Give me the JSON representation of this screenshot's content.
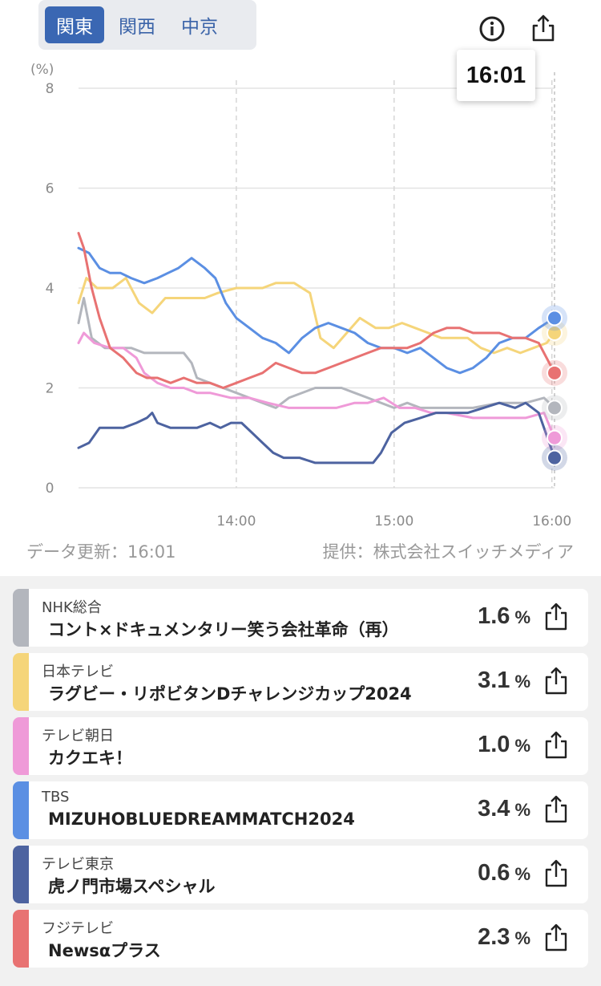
{
  "region_tabs": [
    {
      "label": "関東",
      "active": true
    },
    {
      "label": "関西",
      "active": false
    },
    {
      "label": "中京",
      "active": false
    }
  ],
  "icons": {
    "info": "info-icon",
    "share": "share-icon"
  },
  "tooltip": {
    "time": "16:01"
  },
  "footer": {
    "updated": "データ更新：16:01",
    "provider": "提供：株式会社スイッチメディア"
  },
  "chart_data": {
    "type": "line",
    "ylabel": "(%)",
    "ylim": [
      0,
      8
    ],
    "y_ticks": [
      "0",
      "2",
      "4",
      "6",
      "8"
    ],
    "x_range_minutes": [
      780,
      961
    ],
    "x_ticks": [
      {
        "label": "14:00",
        "minute": 840
      },
      {
        "label": "15:00",
        "minute": 900
      },
      {
        "label": "16:00",
        "minute": 960
      }
    ],
    "cursor_minute": 961,
    "series": [
      {
        "name": "NHK総合",
        "color": "#b3b6bd",
        "points": [
          [
            780,
            3.3
          ],
          [
            782,
            3.8
          ],
          [
            785,
            3.0
          ],
          [
            790,
            2.8
          ],
          [
            795,
            2.8
          ],
          [
            800,
            2.8
          ],
          [
            805,
            2.7
          ],
          [
            810,
            2.7
          ],
          [
            815,
            2.7
          ],
          [
            820,
            2.7
          ],
          [
            823,
            2.5
          ],
          [
            825,
            2.2
          ],
          [
            830,
            2.1
          ],
          [
            840,
            1.9
          ],
          [
            850,
            1.7
          ],
          [
            855,
            1.6
          ],
          [
            860,
            1.8
          ],
          [
            870,
            2.0
          ],
          [
            880,
            2.0
          ],
          [
            885,
            1.9
          ],
          [
            890,
            1.8
          ],
          [
            900,
            1.6
          ],
          [
            905,
            1.7
          ],
          [
            910,
            1.6
          ],
          [
            920,
            1.6
          ],
          [
            930,
            1.6
          ],
          [
            940,
            1.7
          ],
          [
            950,
            1.7
          ],
          [
            957,
            1.8
          ],
          [
            961,
            1.6
          ]
        ]
      },
      {
        "name": "日本テレビ",
        "color": "#f5d57a",
        "points": [
          [
            780,
            3.7
          ],
          [
            783,
            4.2
          ],
          [
            787,
            4.0
          ],
          [
            793,
            4.0
          ],
          [
            798,
            4.2
          ],
          [
            803,
            3.7
          ],
          [
            808,
            3.5
          ],
          [
            813,
            3.8
          ],
          [
            818,
            3.8
          ],
          [
            823,
            3.8
          ],
          [
            828,
            3.8
          ],
          [
            833,
            3.9
          ],
          [
            840,
            4.0
          ],
          [
            850,
            4.0
          ],
          [
            855,
            4.1
          ],
          [
            862,
            4.1
          ],
          [
            868,
            3.9
          ],
          [
            872,
            3.0
          ],
          [
            877,
            2.8
          ],
          [
            882,
            3.1
          ],
          [
            887,
            3.4
          ],
          [
            893,
            3.2
          ],
          [
            898,
            3.2
          ],
          [
            903,
            3.3
          ],
          [
            908,
            3.2
          ],
          [
            913,
            3.1
          ],
          [
            918,
            3.0
          ],
          [
            923,
            3.0
          ],
          [
            928,
            3.0
          ],
          [
            933,
            2.8
          ],
          [
            938,
            2.7
          ],
          [
            943,
            2.8
          ],
          [
            948,
            2.7
          ],
          [
            953,
            2.8
          ],
          [
            958,
            2.9
          ],
          [
            961,
            3.1
          ]
        ]
      },
      {
        "name": "テレビ朝日",
        "color": "#ef9ad8",
        "points": [
          [
            780,
            2.9
          ],
          [
            782,
            3.1
          ],
          [
            786,
            2.9
          ],
          [
            792,
            2.8
          ],
          [
            797,
            2.8
          ],
          [
            802,
            2.6
          ],
          [
            805,
            2.3
          ],
          [
            810,
            2.1
          ],
          [
            815,
            2.0
          ],
          [
            820,
            2.0
          ],
          [
            825,
            1.9
          ],
          [
            830,
            1.9
          ],
          [
            838,
            1.8
          ],
          [
            845,
            1.8
          ],
          [
            852,
            1.7
          ],
          [
            860,
            1.6
          ],
          [
            870,
            1.6
          ],
          [
            878,
            1.6
          ],
          [
            885,
            1.7
          ],
          [
            890,
            1.7
          ],
          [
            896,
            1.8
          ],
          [
            902,
            1.6
          ],
          [
            908,
            1.6
          ],
          [
            914,
            1.5
          ],
          [
            920,
            1.5
          ],
          [
            930,
            1.4
          ],
          [
            940,
            1.4
          ],
          [
            950,
            1.4
          ],
          [
            957,
            1.5
          ],
          [
            961,
            1.0
          ]
        ]
      },
      {
        "name": "TBS",
        "color": "#5b8fe3",
        "points": [
          [
            780,
            4.8
          ],
          [
            784,
            4.7
          ],
          [
            788,
            4.4
          ],
          [
            792,
            4.3
          ],
          [
            796,
            4.3
          ],
          [
            800,
            4.2
          ],
          [
            805,
            4.1
          ],
          [
            810,
            4.2
          ],
          [
            814,
            4.3
          ],
          [
            818,
            4.4
          ],
          [
            823,
            4.6
          ],
          [
            828,
            4.4
          ],
          [
            832,
            4.2
          ],
          [
            836,
            3.7
          ],
          [
            840,
            3.4
          ],
          [
            845,
            3.2
          ],
          [
            850,
            3.0
          ],
          [
            855,
            2.9
          ],
          [
            860,
            2.7
          ],
          [
            865,
            3.0
          ],
          [
            870,
            3.2
          ],
          [
            875,
            3.3
          ],
          [
            880,
            3.2
          ],
          [
            885,
            3.1
          ],
          [
            890,
            2.9
          ],
          [
            895,
            2.8
          ],
          [
            900,
            2.8
          ],
          [
            905,
            2.7
          ],
          [
            910,
            2.8
          ],
          [
            915,
            2.6
          ],
          [
            920,
            2.4
          ],
          [
            925,
            2.3
          ],
          [
            930,
            2.4
          ],
          [
            935,
            2.6
          ],
          [
            940,
            2.9
          ],
          [
            945,
            3.0
          ],
          [
            950,
            3.0
          ],
          [
            955,
            3.2
          ],
          [
            961,
            3.4
          ]
        ]
      },
      {
        "name": "テレビ東京",
        "color": "#4d63a0",
        "points": [
          [
            780,
            0.8
          ],
          [
            784,
            0.9
          ],
          [
            788,
            1.2
          ],
          [
            792,
            1.2
          ],
          [
            797,
            1.2
          ],
          [
            802,
            1.3
          ],
          [
            806,
            1.4
          ],
          [
            808,
            1.5
          ],
          [
            810,
            1.3
          ],
          [
            815,
            1.2
          ],
          [
            820,
            1.2
          ],
          [
            825,
            1.2
          ],
          [
            830,
            1.3
          ],
          [
            834,
            1.2
          ],
          [
            838,
            1.3
          ],
          [
            842,
            1.3
          ],
          [
            846,
            1.1
          ],
          [
            850,
            0.9
          ],
          [
            854,
            0.7
          ],
          [
            858,
            0.6
          ],
          [
            864,
            0.6
          ],
          [
            870,
            0.5
          ],
          [
            876,
            0.5
          ],
          [
            882,
            0.5
          ],
          [
            888,
            0.5
          ],
          [
            892,
            0.5
          ],
          [
            895,
            0.7
          ],
          [
            899,
            1.1
          ],
          [
            904,
            1.3
          ],
          [
            910,
            1.4
          ],
          [
            916,
            1.5
          ],
          [
            922,
            1.5
          ],
          [
            928,
            1.5
          ],
          [
            934,
            1.6
          ],
          [
            940,
            1.7
          ],
          [
            946,
            1.6
          ],
          [
            950,
            1.7
          ],
          [
            955,
            1.5
          ],
          [
            961,
            0.6
          ]
        ]
      },
      {
        "name": "フジテレビ",
        "color": "#e87272",
        "points": [
          [
            780,
            5.1
          ],
          [
            782,
            4.8
          ],
          [
            785,
            4.0
          ],
          [
            788,
            3.4
          ],
          [
            792,
            2.8
          ],
          [
            797,
            2.6
          ],
          [
            802,
            2.3
          ],
          [
            806,
            2.2
          ],
          [
            810,
            2.2
          ],
          [
            815,
            2.1
          ],
          [
            820,
            2.2
          ],
          [
            825,
            2.1
          ],
          [
            830,
            2.1
          ],
          [
            835,
            2.0
          ],
          [
            840,
            2.1
          ],
          [
            845,
            2.2
          ],
          [
            850,
            2.3
          ],
          [
            855,
            2.5
          ],
          [
            860,
            2.4
          ],
          [
            865,
            2.3
          ],
          [
            870,
            2.3
          ],
          [
            875,
            2.4
          ],
          [
            880,
            2.5
          ],
          [
            885,
            2.6
          ],
          [
            890,
            2.7
          ],
          [
            895,
            2.8
          ],
          [
            900,
            2.8
          ],
          [
            905,
            2.8
          ],
          [
            910,
            2.9
          ],
          [
            915,
            3.1
          ],
          [
            920,
            3.2
          ],
          [
            925,
            3.2
          ],
          [
            930,
            3.1
          ],
          [
            935,
            3.1
          ],
          [
            940,
            3.1
          ],
          [
            945,
            3.0
          ],
          [
            950,
            3.0
          ],
          [
            955,
            2.9
          ],
          [
            961,
            2.3
          ]
        ]
      }
    ]
  },
  "channels": [
    {
      "channel": "NHK総合",
      "program": "コント×ドキュメンタリー笑う会社革命（再）",
      "rating": "1.6",
      "unit": "%",
      "color": "#b3b6bd"
    },
    {
      "channel": "日本テレビ",
      "program": "ラグビー・リポビタンDチャレンジカップ2024",
      "rating": "3.1",
      "unit": "%",
      "color": "#f5d57a"
    },
    {
      "channel": "テレビ朝日",
      "program": "カクエキ！",
      "rating": "1.0",
      "unit": "%",
      "color": "#ef9ad8"
    },
    {
      "channel": "TBS",
      "program": "MIZUHOBLUEDREAMMATCH2024",
      "rating": "3.4",
      "unit": "%",
      "color": "#5b8fe3"
    },
    {
      "channel": "テレビ東京",
      "program": "虎ノ門市場スペシャル",
      "rating": "0.6",
      "unit": "%",
      "color": "#4d63a0"
    },
    {
      "channel": "フジテレビ",
      "program": "Newsαプラス",
      "rating": "2.3",
      "unit": "%",
      "color": "#e87272"
    }
  ]
}
